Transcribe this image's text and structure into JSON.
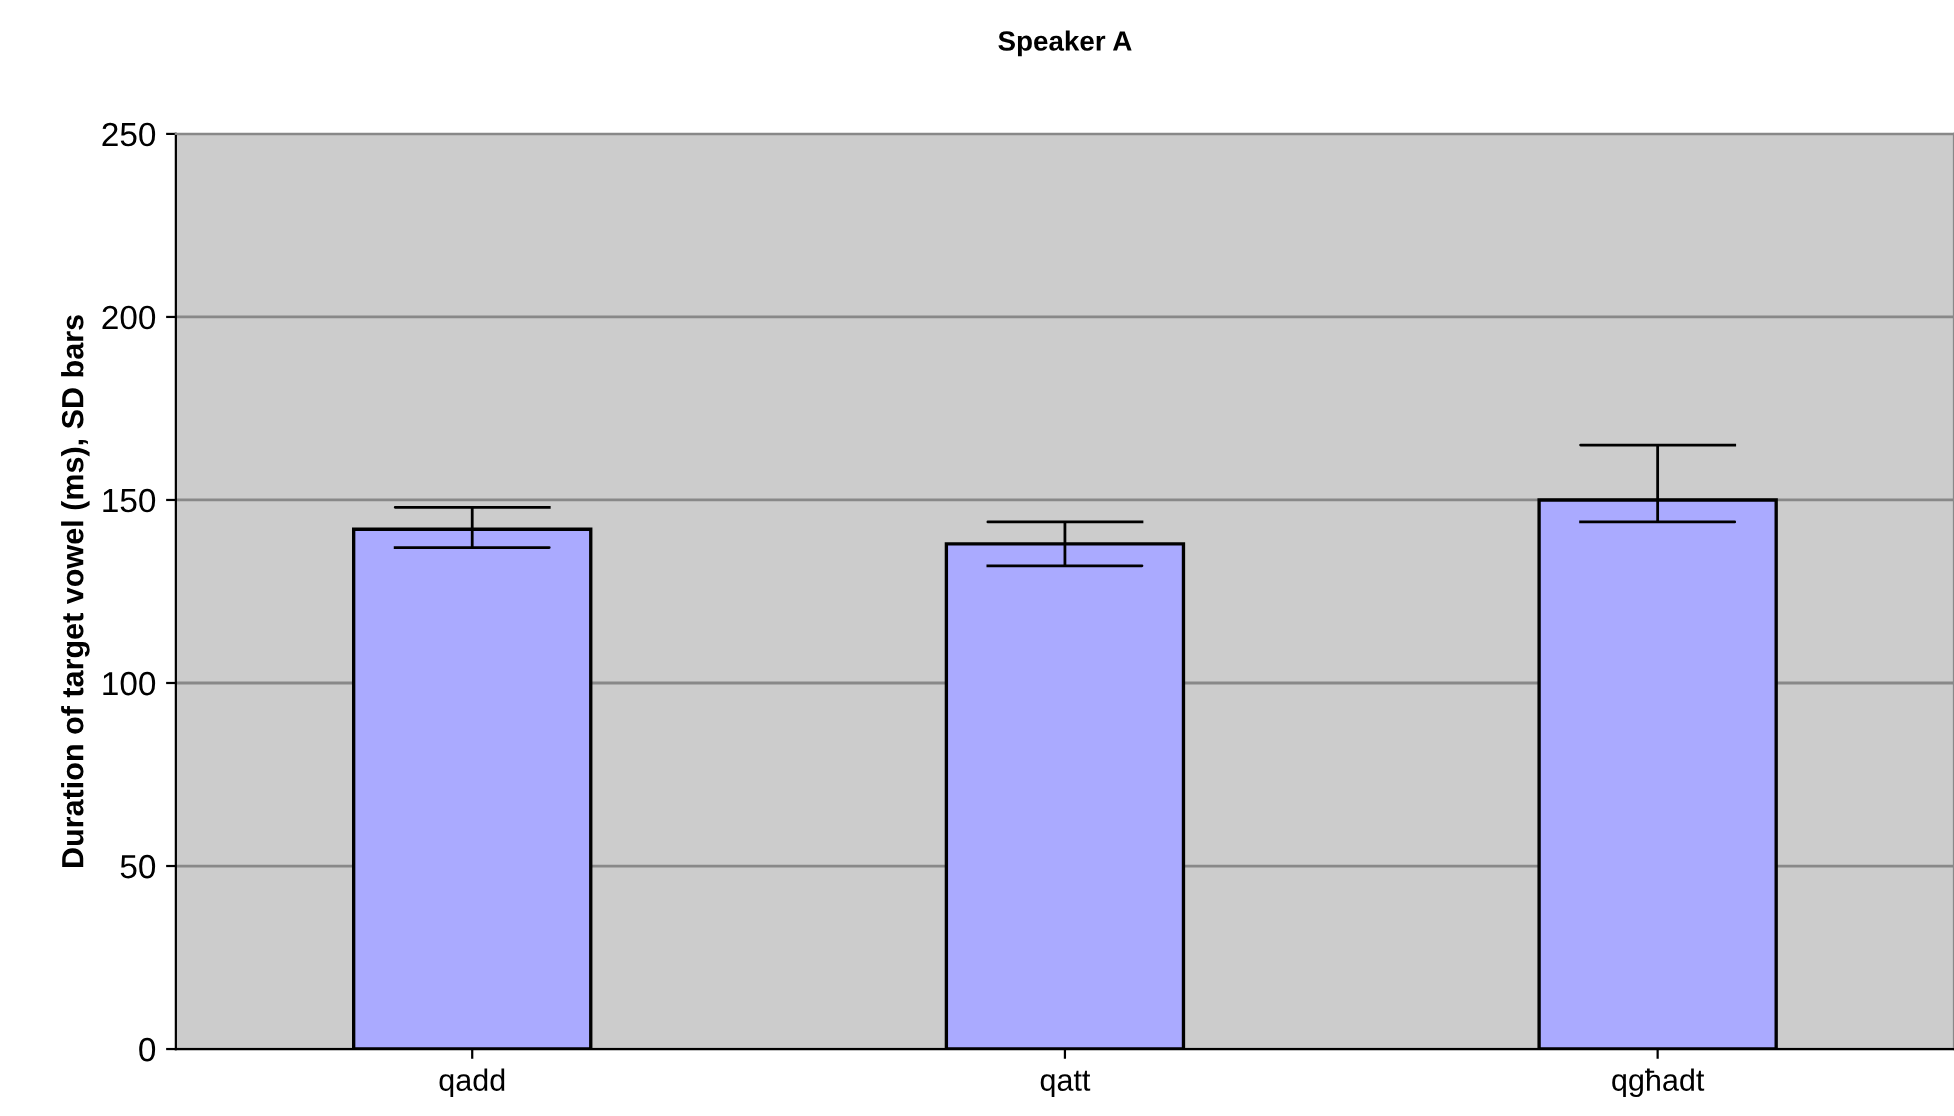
{
  "chart_data": {
    "type": "bar",
    "title": "Speaker A",
    "ylabel": "Duration of target vowel (ms), SD bars",
    "categories": [
      "qadd",
      "qatt",
      "qgħadt"
    ],
    "color": "#aaaaff",
    "values": [
      142,
      138,
      150
    ],
    "errors": [
      [
        137,
        148
      ],
      [
        132,
        144
      ],
      [
        144,
        165
      ]
    ],
    "ylim": [
      0,
      250
    ],
    "yticks": [
      0,
      50,
      100,
      150,
      200,
      250
    ],
    "grid": "y",
    "legend": false
  }
}
